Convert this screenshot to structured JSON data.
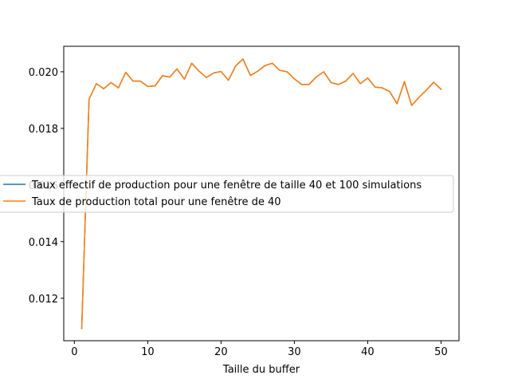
{
  "chart_data": {
    "type": "line",
    "title": "",
    "xlabel": "Taille du buffer",
    "ylabel": "",
    "xlim": [
      -1.45,
      52.45
    ],
    "ylim": [
      0.0105,
      0.0209
    ],
    "xticks": [
      0,
      10,
      20,
      30,
      40,
      50
    ],
    "xtick_labels": [
      "0",
      "10",
      "20",
      "30",
      "40",
      "50"
    ],
    "yticks": [
      0.012,
      0.014,
      0.016,
      0.018,
      0.02
    ],
    "ytick_labels": [
      "0.012",
      "0.014",
      "0.016",
      "0.018",
      "0.020"
    ],
    "grid": false,
    "legend_position": "center-left",
    "x": [
      1,
      2,
      3,
      4,
      5,
      6,
      7,
      8,
      9,
      10,
      11,
      12,
      13,
      14,
      15,
      16,
      17,
      18,
      19,
      20,
      21,
      22,
      23,
      24,
      25,
      26,
      27,
      28,
      29,
      30,
      31,
      32,
      33,
      34,
      35,
      36,
      37,
      38,
      39,
      40,
      41,
      42,
      43,
      44,
      45,
      46,
      47,
      48,
      49,
      50
    ],
    "series": [
      {
        "name": "Taux effectif de production pour une fenêtre de taille 40 et 100 simulations",
        "color": "#1f77b4",
        "values": [
          0.01093,
          0.01903,
          0.01958,
          0.0194,
          0.01962,
          0.01943,
          0.01998,
          0.01967,
          0.01967,
          0.01948,
          0.0195,
          0.01986,
          0.01981,
          0.0201,
          0.01974,
          0.0203,
          0.02002,
          0.0198,
          0.01996,
          0.02001,
          0.0197,
          0.02021,
          0.02045,
          0.01987,
          0.02002,
          0.02022,
          0.0203,
          0.02005,
          0.02,
          0.01975,
          0.01955,
          0.01955,
          0.01982,
          0.02,
          0.01962,
          0.01955,
          0.01967,
          0.01994,
          0.01958,
          0.01978,
          0.01946,
          0.01943,
          0.0193,
          0.01887,
          0.01965,
          0.01881,
          0.0191,
          0.01935,
          0.01963,
          0.01938
        ]
      },
      {
        "name": "Taux de production total pour une fenêtre de 40",
        "color": "#ff7f0e",
        "values": [
          0.01093,
          0.01903,
          0.01958,
          0.0194,
          0.01962,
          0.01943,
          0.01998,
          0.01967,
          0.01967,
          0.01948,
          0.0195,
          0.01986,
          0.01981,
          0.0201,
          0.01974,
          0.0203,
          0.02002,
          0.0198,
          0.01996,
          0.02001,
          0.0197,
          0.02021,
          0.02045,
          0.01987,
          0.02002,
          0.02022,
          0.0203,
          0.02005,
          0.02,
          0.01975,
          0.01955,
          0.01955,
          0.01982,
          0.02,
          0.01962,
          0.01955,
          0.01967,
          0.01994,
          0.01958,
          0.01978,
          0.01946,
          0.01943,
          0.0193,
          0.01887,
          0.01965,
          0.01881,
          0.0191,
          0.01935,
          0.01963,
          0.01938
        ]
      }
    ]
  }
}
